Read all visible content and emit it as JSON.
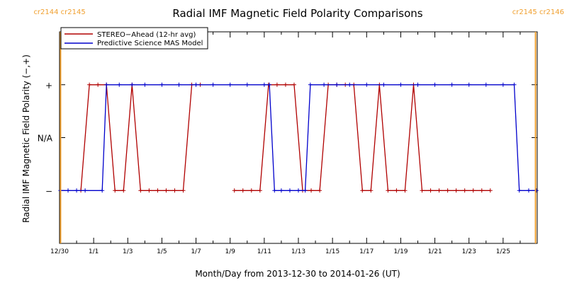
{
  "chart_data": {
    "type": "line",
    "title": "Radial IMF Magnetic Field Polarity Comparisons",
    "xlabel": "Month/Day from 2013-12-30 to 2014-01-26 (UT)",
    "ylabel": "Radial IMF Magnetic Field Polarity (−,+)",
    "xlim": [
      0,
      28
    ],
    "ylim": [
      -2,
      2
    ],
    "ytick_values": [
      -1,
      0,
      1
    ],
    "ytick_labels": [
      "−",
      "N/A",
      "+"
    ],
    "xtick_values": [
      0,
      2,
      4,
      6,
      8,
      10,
      12,
      14,
      16,
      18,
      20,
      22,
      24,
      26
    ],
    "xtick_labels": [
      "12/30",
      "1/1",
      "1/3",
      "1/5",
      "1/7",
      "1/9",
      "1/11",
      "1/13",
      "1/15",
      "1/17",
      "1/19",
      "1/21",
      "1/23",
      "1/25"
    ],
    "carrington_markers": [
      {
        "x": 0.06,
        "labels": [
          "cr2144",
          "cr2145"
        ],
        "side": "left"
      },
      {
        "x": 27.9,
        "labels": [
          "cr2145",
          "cr2146"
        ],
        "side": "right"
      }
    ],
    "legend": {
      "placement": "top-left"
    },
    "series": [
      {
        "name": "STEREO−Ahead (12-hr avg)",
        "color": "#b00000",
        "marker": "plus",
        "segments": [
          [
            [
              1.25,
              -1
            ],
            [
              1.75,
              1
            ],
            [
              2.25,
              1
            ],
            [
              2.75,
              1
            ],
            [
              3.25,
              -1
            ],
            [
              3.75,
              -1
            ],
            [
              4.25,
              1
            ],
            [
              4.75,
              -1
            ],
            [
              5.25,
              -1
            ],
            [
              5.75,
              -1
            ],
            [
              6.25,
              -1
            ],
            [
              6.75,
              -1
            ],
            [
              7.25,
              -1
            ],
            [
              7.75,
              1
            ],
            [
              8.25,
              1
            ]
          ],
          [
            [
              10.25,
              -1
            ],
            [
              10.75,
              -1
            ],
            [
              11.25,
              -1
            ],
            [
              11.75,
              -1
            ],
            [
              12.25,
              1
            ],
            [
              12.75,
              1
            ],
            [
              13.25,
              1
            ],
            [
              13.75,
              1
            ],
            [
              14.25,
              -1
            ],
            [
              14.75,
              -1
            ],
            [
              15.25,
              -1
            ],
            [
              15.75,
              1
            ],
            [
              16.25,
              1
            ],
            [
              16.75,
              1
            ],
            [
              17.25,
              1
            ],
            [
              17.75,
              -1
            ],
            [
              18.25,
              -1
            ],
            [
              18.75,
              1
            ],
            [
              19.25,
              -1
            ],
            [
              19.75,
              -1
            ],
            [
              20.25,
              -1
            ],
            [
              20.75,
              1
            ],
            [
              21.25,
              -1
            ],
            [
              21.75,
              -1
            ],
            [
              22.25,
              -1
            ],
            [
              22.75,
              -1
            ],
            [
              23.25,
              -1
            ],
            [
              23.75,
              -1
            ],
            [
              24.25,
              -1
            ],
            [
              24.75,
              -1
            ],
            [
              25.25,
              -1
            ]
          ]
        ]
      },
      {
        "name": "Predictive Science MAS Model",
        "color": "#0000cc",
        "marker": "plus",
        "segments": [
          [
            [
              0.06,
              -1
            ],
            [
              0.5,
              -1
            ],
            [
              1,
              -1
            ],
            [
              1.5,
              -1
            ],
            [
              2.5,
              -1
            ],
            [
              2.75,
              1
            ],
            [
              3.5,
              1
            ],
            [
              4.25,
              1
            ],
            [
              5,
              1
            ],
            [
              6,
              1
            ],
            [
              7,
              1
            ],
            [
              8,
              1
            ],
            [
              9,
              1
            ],
            [
              10,
              1
            ],
            [
              11,
              1
            ],
            [
              12,
              1
            ],
            [
              12.3,
              1
            ],
            [
              12.6,
              -1
            ],
            [
              13,
              -1
            ],
            [
              13.5,
              -1
            ],
            [
              14,
              -1
            ],
            [
              14.4,
              -1
            ],
            [
              14.7,
              1
            ],
            [
              15.5,
              1
            ],
            [
              16.25,
              1
            ],
            [
              17,
              1
            ],
            [
              18,
              1
            ],
            [
              19,
              1
            ],
            [
              20,
              1
            ],
            [
              21,
              1
            ],
            [
              22,
              1
            ],
            [
              23,
              1
            ],
            [
              24,
              1
            ],
            [
              25,
              1
            ],
            [
              26,
              1
            ],
            [
              26.65,
              1
            ],
            [
              26.95,
              -1
            ],
            [
              27.5,
              -1
            ],
            [
              27.95,
              -1
            ]
          ]
        ]
      }
    ]
  }
}
